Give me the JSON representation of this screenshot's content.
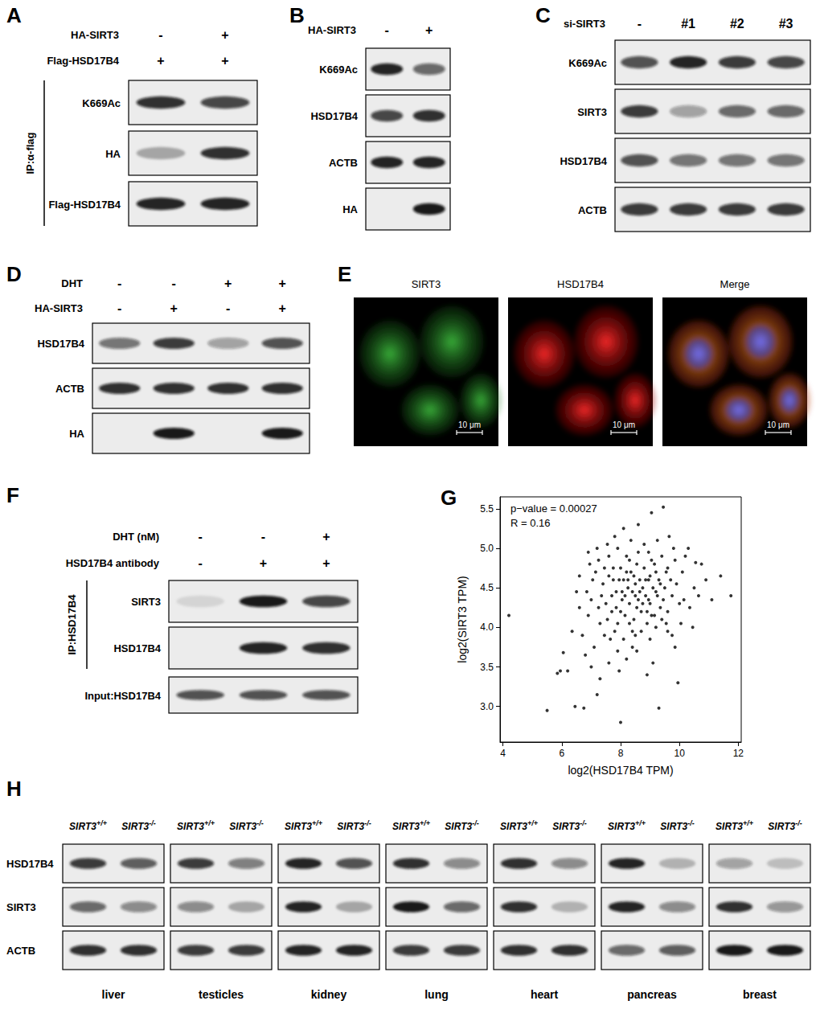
{
  "panels": {
    "A": {
      "label": "A",
      "conditions": [
        {
          "name": "HA-SIRT3",
          "values": [
            "-",
            "+"
          ]
        },
        {
          "name": "Flag-HSD17B4",
          "values": [
            "+",
            "+"
          ]
        }
      ],
      "group": "IP:α-flag",
      "rows": [
        {
          "name": "K669Ac",
          "bands": [
            0.85,
            0.75
          ]
        },
        {
          "name": "HA",
          "bands": [
            0.3,
            0.85
          ]
        },
        {
          "name": "Flag-HSD17B4",
          "bands": [
            0.9,
            0.9
          ]
        }
      ]
    },
    "B": {
      "label": "B",
      "conditions": [
        {
          "name": "HA-SIRT3",
          "values": [
            "-",
            "+"
          ]
        }
      ],
      "rows": [
        {
          "name": "K669Ac",
          "bands": [
            0.9,
            0.6
          ]
        },
        {
          "name": "HSD17B4",
          "bands": [
            0.75,
            0.85
          ]
        },
        {
          "name": "ACTB",
          "bands": [
            0.9,
            0.9
          ]
        },
        {
          "name": "HA",
          "bands": [
            0,
            0.95
          ]
        }
      ]
    },
    "C": {
      "label": "C",
      "conditions": [
        {
          "name": "si-SIRT3",
          "values": [
            "-",
            "#1",
            "#2",
            "#3"
          ]
        }
      ],
      "rows": [
        {
          "name": "K669Ac",
          "bands": [
            0.7,
            0.9,
            0.8,
            0.75
          ]
        },
        {
          "name": "SIRT3",
          "bands": [
            0.8,
            0.35,
            0.6,
            0.6
          ]
        },
        {
          "name": "HSD17B4",
          "bands": [
            0.7,
            0.55,
            0.55,
            0.55
          ]
        },
        {
          "name": "ACTB",
          "bands": [
            0.8,
            0.8,
            0.8,
            0.8
          ]
        }
      ]
    },
    "D": {
      "label": "D",
      "conditions": [
        {
          "name": "DHT",
          "values": [
            "-",
            "-",
            "+",
            "+"
          ]
        },
        {
          "name": "HA-SIRT3",
          "values": [
            "-",
            "+",
            "-",
            "+"
          ]
        }
      ],
      "rows": [
        {
          "name": "HSD17B4",
          "bands": [
            0.55,
            0.8,
            0.35,
            0.7
          ]
        },
        {
          "name": "ACTB",
          "bands": [
            0.85,
            0.85,
            0.85,
            0.85
          ]
        },
        {
          "name": "HA",
          "bands": [
            0,
            0.95,
            0,
            0.95
          ]
        }
      ]
    },
    "E": {
      "label": "E",
      "images": [
        {
          "title": "SIRT3"
        },
        {
          "title": "HSD17B4"
        },
        {
          "title": "Merge"
        }
      ],
      "scale_bar": "10 μm"
    },
    "F": {
      "label": "F",
      "conditions": [
        {
          "name": "DHT (nM)",
          "values": [
            "-",
            "-",
            "+"
          ]
        },
        {
          "name": "HSD17B4 antibody",
          "values": [
            "-",
            "+",
            "+"
          ]
        }
      ],
      "group": "IP:HSD17B4",
      "rows": [
        {
          "name": "SIRT3",
          "bands": [
            0.1,
            0.95,
            0.75
          ],
          "in_group": true
        },
        {
          "name": "HSD17B4",
          "bands": [
            0,
            0.9,
            0.85
          ],
          "in_group": true
        },
        {
          "name": "Input:HSD17B4",
          "bands": [
            0.7,
            0.7,
            0.7
          ],
          "in_group": false
        }
      ]
    },
    "G": {
      "label": "G"
    },
    "H": {
      "label": "H",
      "genotypes": [
        {
          "gene": "SIRT3",
          "allele": "+/+"
        },
        {
          "gene": "SIRT3",
          "allele": "-/-"
        }
      ],
      "rows": [
        "HSD17B4",
        "SIRT3",
        "ACTB"
      ],
      "tissues": [
        {
          "name": "liver",
          "bands": [
            [
              0.8,
              0.65
            ],
            [
              0.6,
              0.45
            ],
            [
              0.85,
              0.85
            ]
          ]
        },
        {
          "name": "testicles",
          "bands": [
            [
              0.8,
              0.5
            ],
            [
              0.45,
              0.3
            ],
            [
              0.8,
              0.8
            ]
          ]
        },
        {
          "name": "kidney",
          "bands": [
            [
              0.9,
              0.7
            ],
            [
              0.9,
              0.3
            ],
            [
              0.9,
              0.9
            ]
          ]
        },
        {
          "name": "lung",
          "bands": [
            [
              0.85,
              0.45
            ],
            [
              0.95,
              0.6
            ],
            [
              0.8,
              0.8
            ]
          ]
        },
        {
          "name": "heart",
          "bands": [
            [
              0.85,
              0.45
            ],
            [
              0.85,
              0.25
            ],
            [
              0.85,
              0.85
            ]
          ]
        },
        {
          "name": "pancreas",
          "bands": [
            [
              0.9,
              0.25
            ],
            [
              0.9,
              0.45
            ],
            [
              0.6,
              0.65
            ]
          ]
        },
        {
          "name": "breast",
          "bands": [
            [
              0.35,
              0.2
            ],
            [
              0.85,
              0.4
            ],
            [
              0.95,
              0.95
            ]
          ]
        }
      ]
    }
  },
  "chart_data": {
    "type": "scatter",
    "x_label": "log2(HSD17B4 TPM)",
    "y_label": "log2(SIRT3 TPM)",
    "annotations": [
      "p−value = 0.00027",
      "R = 0.16"
    ],
    "xlim": [
      3.9,
      12.1
    ],
    "xticks": [
      4,
      6,
      8,
      10,
      12
    ],
    "ylim": [
      2.55,
      5.65
    ],
    "yticks": [
      {
        "value": 3,
        "label": "3.0"
      },
      3.5,
      {
        "value": 4,
        "label": "4.0"
      },
      4.5,
      {
        "value": 5,
        "label": "5.0"
      },
      5.5
    ],
    "color": "#000000",
    "marker": "circle",
    "grid": false,
    "x": [
      4.2,
      5.5,
      5.85,
      5.95,
      6.2,
      6.05,
      6.45,
      6.75,
      8.0,
      9.3,
      9.45,
      9.05,
      8.6,
      7.8,
      7.2,
      6.9,
      11.75,
      11.4,
      11.1,
      10.75,
      10.55,
      10.9,
      10.3,
      10.15,
      10.45,
      9.85,
      9.95,
      6.35,
      6.6,
      6.5,
      6.8,
      7.0,
      7.3,
      7.6,
      7.95,
      8.2,
      8.9,
      9.1,
      8.55,
      7.1,
      7.2,
      8.4,
      7.05,
      7.15,
      7.25,
      7.4,
      7.5,
      7.6,
      7.7,
      7.75,
      7.85,
      7.9,
      8.0,
      8.05,
      8.1,
      8.15,
      8.2,
      8.25,
      8.3,
      8.35,
      8.4,
      8.45,
      8.5,
      8.55,
      8.6,
      8.65,
      8.7,
      8.75,
      8.8,
      8.85,
      8.9,
      8.95,
      9.0,
      9.05,
      9.1,
      9.15,
      9.2,
      9.25,
      9.3,
      9.35,
      9.4,
      9.5,
      9.55,
      9.6,
      9.7,
      9.75,
      9.8,
      9.9,
      10.0,
      10.1,
      10.2,
      7.3,
      7.45,
      7.55,
      7.65,
      7.8,
      8.0,
      8.1,
      8.3,
      8.5,
      8.7,
      8.9,
      9.0,
      9.2,
      9.4,
      9.6,
      6.9,
      7.0,
      6.7,
      7.35,
      7.9,
      8.35,
      8.8,
      9.25,
      9.65,
      8.1,
      7.55,
      6.95,
      6.6,
      10.5,
      10.35,
      10.65,
      9.85,
      8.45,
      8.6,
      8.25,
      7.95,
      7.7,
      7.45,
      8.05,
      8.95,
      9.15,
      9.45,
      9.35,
      8.75,
      8.15,
      7.85,
      8.55,
      9.05,
      9.55,
      8.4,
      7.9,
      9.75,
      10.05,
      7.6,
      8.65,
      9.2,
      8.3,
      7.25,
      6.85,
      8.85,
      9.0,
      8.2,
      8.5,
      7.75,
      9.6,
      8.95
    ],
    "values": [
      4.15,
      2.95,
      3.42,
      3.45,
      3.45,
      3.68,
      3.0,
      2.98,
      2.8,
      2.98,
      5.52,
      5.45,
      5.3,
      5.15,
      5.0,
      4.95,
      4.4,
      4.65,
      4.35,
      4.8,
      4.82,
      4.6,
      5.0,
      4.35,
      4.0,
      3.75,
      3.3,
      3.95,
      4.25,
      4.45,
      3.65,
      3.5,
      3.35,
      3.55,
      3.45,
      3.6,
      3.4,
      3.55,
      3.7,
      3.75,
      3.15,
      3.95,
      4.6,
      4.7,
      4.85,
      4.55,
      4.3,
      4.9,
      4.2,
      4.6,
      4.45,
      4.05,
      4.75,
      4.35,
      4.6,
      4.15,
      4.9,
      4.5,
      4.3,
      4.7,
      4.45,
      4.1,
      4.55,
      4.8,
      4.35,
      4.6,
      4.2,
      4.5,
      4.75,
      4.4,
      4.05,
      4.6,
      4.3,
      4.85,
      4.5,
      4.15,
      4.7,
      4.4,
      4.6,
      4.25,
      4.9,
      4.5,
      4.7,
      4.2,
      4.6,
      4.4,
      5.0,
      4.55,
      4.3,
      4.7,
      4.9,
      4.05,
      3.9,
      4.1,
      3.85,
      3.95,
      4.2,
      3.85,
      4.05,
      3.9,
      3.95,
      4.2,
      3.85,
      4.0,
      4.1,
      3.95,
      4.15,
      4.35,
      3.9,
      4.4,
      5.0,
      5.1,
      5.05,
      5.1,
      5.15,
      5.25,
      5.05,
      4.8,
      4.65,
      4.5,
      4.25,
      4.4,
      4.85,
      4.65,
      4.95,
      4.6,
      4.6,
      4.4,
      4.75,
      4.45,
      4.95,
      4.8,
      4.35,
      4.55,
      4.3,
      4.4,
      4.25,
      4.25,
      4.15,
      4.05,
      3.75,
      3.7,
      3.9,
      4.05,
      4.65,
      4.45,
      4.45,
      4.85,
      4.25,
      4.45,
      4.6,
      4.65,
      4.7,
      4.4,
      4.75,
      4.75,
      4.35
    ]
  }
}
